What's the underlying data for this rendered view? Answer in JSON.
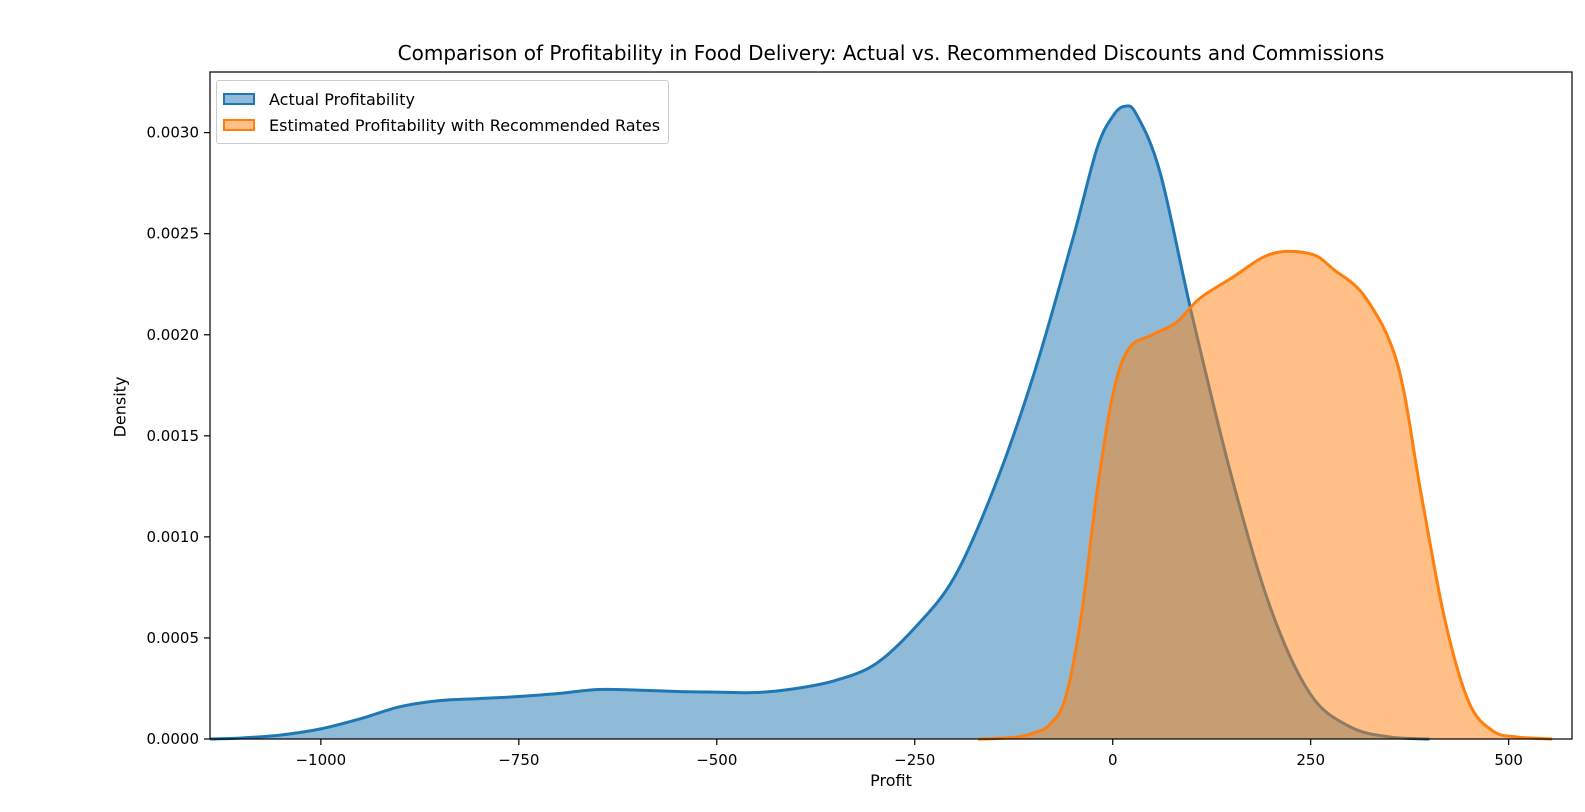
{
  "chart_data": {
    "type": "area",
    "title": "Comparison of Profitability in Food Delivery: Actual vs. Recommended Discounts and Commissions",
    "xlabel": "Profit",
    "ylabel": "Density",
    "xlim": [
      -1140,
      580
    ],
    "ylim": [
      0,
      0.0033
    ],
    "x_ticks": [
      -1000,
      -750,
      -500,
      -250,
      0,
      250,
      500
    ],
    "x_tick_labels": [
      "−1000",
      "−750",
      "−500",
      "−250",
      "0",
      "250",
      "500"
    ],
    "y_ticks": [
      0,
      0.0005,
      0.001,
      0.0015,
      0.002,
      0.0025,
      0.003
    ],
    "y_tick_labels": [
      "0.0000",
      "0.0005",
      "0.0010",
      "0.0015",
      "0.0020",
      "0.0025",
      "0.0030"
    ],
    "grid": false,
    "legend_position": "top-left",
    "series": [
      {
        "name": "Actual Profitability",
        "line_color": "#1f77b4",
        "fill_color": "#1f77b4",
        "fill_opacity": 0.5,
        "points": [
          [
            -1140,
            0
          ],
          [
            -1100,
            5e-06
          ],
          [
            -1050,
            2e-05
          ],
          [
            -1000,
            5e-05
          ],
          [
            -950,
            0.0001
          ],
          [
            -900,
            0.00016
          ],
          [
            -850,
            0.00019
          ],
          [
            -800,
            0.0002
          ],
          [
            -750,
            0.00021
          ],
          [
            -700,
            0.000225
          ],
          [
            -650,
            0.000245
          ],
          [
            -600,
            0.000242
          ],
          [
            -550,
            0.000235
          ],
          [
            -500,
            0.000232
          ],
          [
            -450,
            0.00023
          ],
          [
            -400,
            0.00025
          ],
          [
            -350,
            0.00029
          ],
          [
            -300,
            0.00037
          ],
          [
            -250,
            0.00055
          ],
          [
            -200,
            0.0008
          ],
          [
            -150,
            0.00124
          ],
          [
            -100,
            0.0018
          ],
          [
            -50,
            0.00248
          ],
          [
            -20,
            0.00292
          ],
          [
            0,
            0.00308
          ],
          [
            15,
            0.00313
          ],
          [
            30,
            0.00309
          ],
          [
            60,
            0.0028
          ],
          [
            100,
            0.0021
          ],
          [
            150,
            0.0013
          ],
          [
            200,
            0.00064
          ],
          [
            250,
            0.00022
          ],
          [
            300,
            6e-05
          ],
          [
            350,
            1e-05
          ],
          [
            400,
            0
          ]
        ]
      },
      {
        "name": "Estimated Profitability with Recommended Rates",
        "line_color": "#ff7f0e",
        "fill_color": "#ff7f0e",
        "fill_opacity": 0.5,
        "points": [
          [
            -170,
            0
          ],
          [
            -150,
            2e-06
          ],
          [
            -120,
            1e-05
          ],
          [
            -100,
            3e-05
          ],
          [
            -80,
            7e-05
          ],
          [
            -60,
            0.0002
          ],
          [
            -40,
            0.0006
          ],
          [
            -20,
            0.00122
          ],
          [
            0,
            0.0017
          ],
          [
            20,
            0.00193
          ],
          [
            50,
            0.002
          ],
          [
            80,
            0.00206
          ],
          [
            110,
            0.00218
          ],
          [
            150,
            0.00228
          ],
          [
            200,
            0.0024
          ],
          [
            250,
            0.0024
          ],
          [
            280,
            0.00232
          ],
          [
            320,
            0.00218
          ],
          [
            360,
            0.00185
          ],
          [
            390,
            0.0012
          ],
          [
            420,
            0.00058
          ],
          [
            450,
            0.00018
          ],
          [
            480,
            4e-05
          ],
          [
            510,
            1e-05
          ],
          [
            555,
            0
          ]
        ]
      }
    ]
  }
}
